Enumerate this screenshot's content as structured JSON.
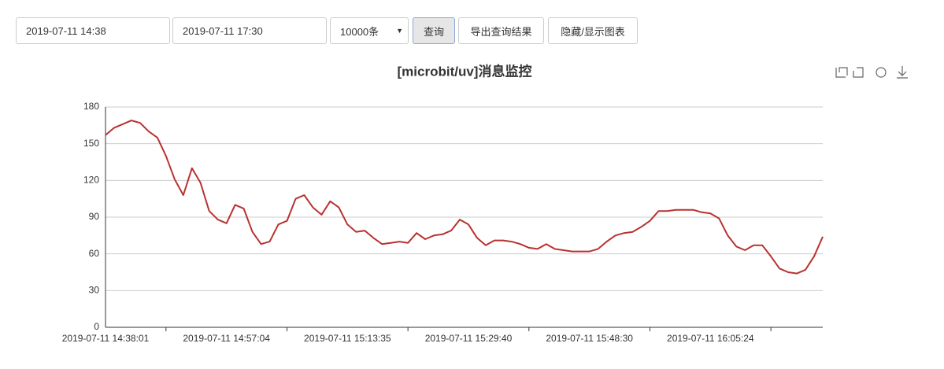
{
  "toolbar": {
    "start": "2019-07-11 14:38",
    "end": "2019-07-11 17:30",
    "limit": "10000条",
    "query": "查询",
    "export": "导出查询结果",
    "toggle": "隐藏/显示图表"
  },
  "chart_data": {
    "type": "line",
    "title": "[microbit/uv]消息监控",
    "color": "#b83230",
    "categories": [
      "2019-07-11 14:38:01",
      null,
      null,
      null,
      null,
      null,
      null,
      null,
      null,
      null,
      null,
      null,
      null,
      null,
      "2019-07-11 14:57:04",
      null,
      null,
      null,
      null,
      null,
      null,
      null,
      null,
      null,
      null,
      null,
      null,
      null,
      "2019-07-11 15:13:35",
      null,
      null,
      null,
      null,
      null,
      null,
      null,
      null,
      null,
      null,
      null,
      null,
      null,
      "2019-07-11 15:29:40",
      null,
      null,
      null,
      null,
      null,
      null,
      null,
      null,
      null,
      null,
      null,
      null,
      null,
      "2019-07-11 15:48:30",
      null,
      null,
      null,
      null,
      null,
      null,
      null,
      null,
      null,
      null,
      null,
      null,
      null,
      "2019-07-11 16:05:24",
      null,
      null,
      null,
      null,
      null,
      null,
      null,
      null,
      null,
      null,
      null,
      null,
      null
    ],
    "values": [
      157,
      163,
      166,
      169,
      167,
      160,
      155,
      140,
      121,
      108,
      130,
      118,
      95,
      88,
      85,
      100,
      97,
      78,
      68,
      70,
      84,
      87,
      105,
      108,
      98,
      92,
      103,
      98,
      84,
      78,
      79,
      73,
      68,
      69,
      70,
      69,
      77,
      72,
      75,
      76,
      79,
      88,
      84,
      73,
      67,
      71,
      71,
      70,
      68,
      65,
      64,
      68,
      64,
      63,
      62,
      62,
      62,
      64,
      70,
      75,
      77,
      78,
      82,
      87,
      95,
      95,
      96,
      96,
      96,
      94,
      93,
      89,
      75,
      66,
      63,
      67,
      67,
      58,
      48,
      45,
      44,
      47,
      58,
      74
    ],
    "ylim": [
      0,
      180
    ],
    "yticks": [
      0,
      30,
      60,
      90,
      120,
      150,
      180
    ],
    "grid": true
  }
}
